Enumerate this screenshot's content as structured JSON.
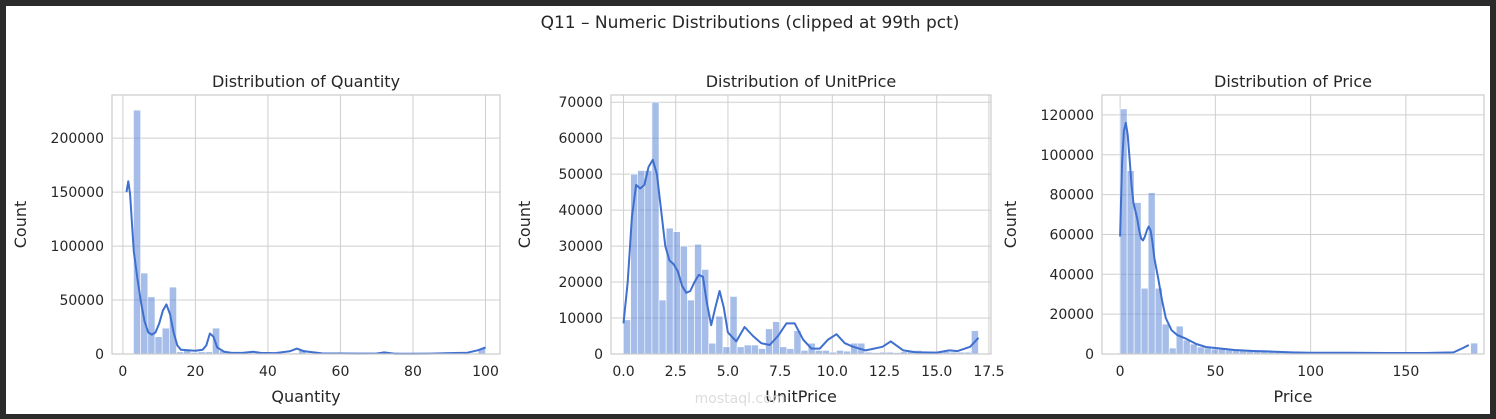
{
  "figure": {
    "suptitle": "Q11 – Numeric Distributions (clipped at 99th pct)"
  },
  "watermark": {
    "text": "mostaql.com"
  },
  "colors": {
    "bar": "#5b86d6",
    "kde": "#3f6fcf",
    "grid": "#cfcfcf",
    "frame": "#cccccc"
  },
  "chart_data": [
    {
      "type": "bar",
      "title": "Distribution of Quantity",
      "xlabel": "Quantity",
      "ylabel": "Count",
      "xlim": [
        -3,
        104
      ],
      "ylim": [
        0,
        240000
      ],
      "xticks": [
        0,
        20,
        40,
        60,
        80,
        100
      ],
      "yticks": [
        0,
        50000,
        100000,
        150000,
        200000
      ],
      "bins": {
        "start": 0.94,
        "width": 1.98,
        "values": [
          0,
          226000,
          75000,
          53000,
          16000,
          24000,
          62000,
          2000,
          4000,
          1500,
          2000,
          2000,
          24000,
          3000,
          1200,
          800,
          700,
          1000,
          1500,
          800,
          500,
          400,
          600,
          900,
          4000,
          600,
          300,
          200,
          200,
          300,
          300,
          200,
          200,
          200,
          200,
          200,
          300,
          1500,
          200,
          200,
          200,
          200,
          200,
          200,
          200,
          200,
          200,
          200,
          500,
          5000
        ]
      },
      "kde": {
        "x": [
          1,
          1.5,
          2,
          2.5,
          3,
          4,
          5,
          6,
          7,
          8,
          9,
          10,
          11,
          12,
          13,
          14,
          15,
          16,
          18,
          20,
          22,
          23,
          24,
          25,
          26,
          28,
          30,
          33,
          36,
          38,
          42,
          46,
          48,
          50,
          55,
          60,
          65,
          70,
          72,
          75,
          80,
          85,
          90,
          95,
          98,
          100
        ],
        "y": [
          150000,
          160000,
          148000,
          122000,
          95000,
          70000,
          48000,
          30000,
          20000,
          18000,
          20000,
          28000,
          40000,
          46000,
          37000,
          20000,
          8000,
          4000,
          3500,
          3000,
          4000,
          8000,
          19000,
          16000,
          6000,
          2000,
          1000,
          1000,
          2000,
          1000,
          800,
          2500,
          5000,
          2500,
          600,
          500,
          400,
          500,
          1500,
          300,
          300,
          400,
          800,
          1200,
          3500,
          6000
        ]
      }
    },
    {
      "type": "bar",
      "title": "Distribution of UnitPrice",
      "xlabel": "UnitPrice",
      "ylabel": "Count",
      "xlim": [
        -0.6,
        17.6
      ],
      "ylim": [
        0,
        72000
      ],
      "xticks": [
        0.0,
        2.5,
        5.0,
        7.5,
        10.0,
        12.5,
        15.0,
        17.5
      ],
      "xticklabels": [
        "0.0",
        "2.5",
        "5.0",
        "7.5",
        "10.0",
        "12.5",
        "15.0",
        "17.5"
      ],
      "yticks": [
        0,
        10000,
        20000,
        30000,
        40000,
        50000,
        60000,
        70000
      ],
      "bins": {
        "start": 0,
        "width": 0.34,
        "values": [
          9500,
          50000,
          51000,
          51000,
          70000,
          15000,
          35000,
          34000,
          30000,
          15000,
          30500,
          23500,
          3000,
          10500,
          2000,
          16000,
          2000,
          2500,
          2500,
          1500,
          7000,
          9000,
          2000,
          1500,
          6500,
          1000,
          3000,
          1000,
          1000,
          500,
          1000,
          800,
          3000,
          3000,
          500,
          400,
          500,
          500,
          400,
          600,
          600,
          1000,
          600,
          700,
          500,
          600,
          500,
          500,
          500,
          6500
        ]
      },
      "kde": {
        "x": [
          0,
          0.2,
          0.4,
          0.6,
          0.8,
          1.0,
          1.2,
          1.4,
          1.6,
          1.8,
          2.0,
          2.2,
          2.4,
          2.6,
          2.8,
          3.0,
          3.2,
          3.4,
          3.6,
          3.8,
          4.0,
          4.2,
          4.4,
          4.6,
          4.8,
          5.0,
          5.4,
          5.8,
          6.2,
          6.6,
          7.0,
          7.4,
          7.8,
          8.2,
          8.6,
          9.0,
          9.4,
          9.8,
          10.2,
          10.6,
          11.0,
          11.6,
          12.4,
          12.8,
          13.4,
          14.0,
          15.0,
          15.6,
          16.0,
          16.6,
          17.0
        ],
        "y": [
          8500,
          20000,
          38000,
          47000,
          46000,
          47000,
          52000,
          54000,
          50000,
          40000,
          30000,
          26000,
          25000,
          23000,
          19000,
          17000,
          17500,
          20000,
          22000,
          21500,
          14000,
          8000,
          13000,
          17500,
          13000,
          6000,
          3500,
          7500,
          5000,
          3000,
          2500,
          5000,
          8500,
          8500,
          4000,
          1500,
          1500,
          4000,
          5500,
          3000,
          2000,
          1000,
          2000,
          3500,
          1000,
          500,
          400,
          1000,
          800,
          2000,
          4500
        ]
      }
    },
    {
      "type": "bar",
      "title": "Distribution of Price",
      "xlabel": "Price",
      "ylabel": "Count",
      "xlim": [
        -9.5,
        191
      ],
      "ylim": [
        0,
        130000
      ],
      "xticks": [
        0,
        50,
        100,
        150
      ],
      "yticks": [
        0,
        20000,
        40000,
        60000,
        80000,
        100000,
        120000
      ],
      "bins": {
        "start": 0,
        "width": 3.68,
        "values": [
          123000,
          92000,
          76000,
          33000,
          81000,
          33000,
          15000,
          3000,
          14000,
          7000,
          5000,
          3500,
          3000,
          2500,
          2500,
          2000,
          2000,
          2000,
          2000,
          1500,
          1500,
          1500,
          1000,
          1000,
          800,
          800,
          800,
          700,
          700,
          600,
          500,
          500,
          500,
          500,
          500,
          400,
          400,
          400,
          400,
          400,
          400,
          400,
          300,
          300,
          300,
          300,
          300,
          300,
          300,
          300,
          5500
        ]
      },
      "kde": {
        "x": [
          0,
          1,
          2,
          3,
          4,
          5,
          6,
          7,
          8,
          9,
          10,
          11,
          12,
          13,
          14,
          15,
          16,
          17,
          18,
          20,
          22,
          24,
          27,
          30,
          35,
          40,
          45,
          50,
          55,
          60,
          70,
          80,
          90,
          100,
          120,
          140,
          160,
          175,
          180,
          183
        ],
        "y": [
          59000,
          95000,
          112000,
          116000,
          110000,
          98000,
          85000,
          76000,
          72000,
          68000,
          62000,
          58000,
          57000,
          59000,
          62000,
          64000,
          62000,
          56000,
          48000,
          38000,
          27000,
          18000,
          12000,
          9500,
          7500,
          5000,
          3500,
          3000,
          2500,
          2000,
          1500,
          1200,
          800,
          600,
          600,
          500,
          500,
          800,
          3000,
          4500
        ]
      }
    }
  ]
}
